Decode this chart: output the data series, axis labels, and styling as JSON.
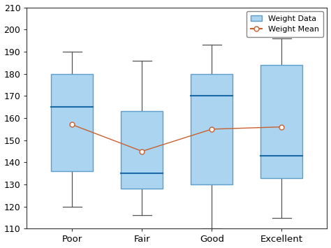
{
  "categories": [
    "Poor",
    "Fair",
    "Good",
    "Excellent"
  ],
  "boxes": [
    {
      "q1": 136,
      "median": 165,
      "q3": 180,
      "whisker_low": 120,
      "whisker_high": 190,
      "mean": 157
    },
    {
      "q1": 128,
      "median": 135,
      "q3": 163,
      "whisker_low": 116,
      "whisker_high": 186,
      "mean": 145
    },
    {
      "q1": 130,
      "median": 170,
      "q3": 180,
      "whisker_low": 110,
      "whisker_high": 193,
      "mean": 155
    },
    {
      "q1": 133,
      "median": 143,
      "q3": 184,
      "whisker_low": 115,
      "whisker_high": 196,
      "mean": 156
    }
  ],
  "box_facecolor": "#aad4f0",
  "box_edgecolor": "#5a9ec9",
  "whisker_color": "#555555",
  "median_color": "#1a6aaa",
  "mean_line_color": "#c86030",
  "mean_marker_facecolor": "#ffffff",
  "mean_marker_edgecolor": "#c86030",
  "ylim": [
    110,
    210
  ],
  "yticks": [
    110,
    120,
    130,
    140,
    150,
    160,
    170,
    180,
    190,
    200,
    210
  ],
  "box_width": 0.6,
  "legend_labels": [
    "Weight Data",
    "Weight Mean"
  ],
  "background_color": "#ffffff",
  "figure_background": "#ffffff"
}
